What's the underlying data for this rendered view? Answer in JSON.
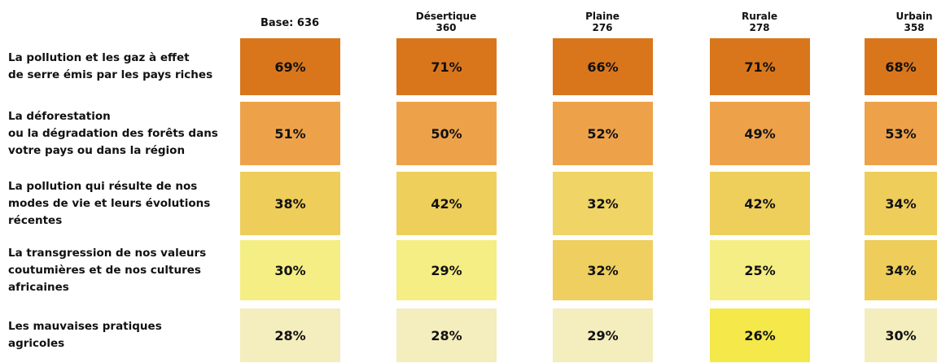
{
  "table": {
    "columns": [
      {
        "name": "Base: 636"
      },
      {
        "name": "Désertique",
        "n": "360"
      },
      {
        "name": "Plaine",
        "n": "276"
      },
      {
        "name": "Rurale",
        "n": "278"
      },
      {
        "name": "Urbain",
        "n": "358"
      }
    ],
    "rows": [
      {
        "label": [
          "La pollution et les gaz à effet",
          "de serre émis par les pays riches"
        ],
        "cells": [
          "69%",
          "71%",
          "66%",
          "71%",
          "68%"
        ],
        "colors": [
          "#d9761b",
          "#d9761b",
          "#d9761b",
          "#d9761b",
          "#d9761b"
        ]
      },
      {
        "label": [
          "La déforestation",
          "ou la dégradation des forêts dans",
          "votre pays ou dans la région"
        ],
        "cells": [
          "51%",
          "50%",
          "52%",
          "49%",
          "53%"
        ],
        "colors": [
          "#eda24a",
          "#eda24a",
          "#eda24a",
          "#eda24a",
          "#eda24a"
        ]
      },
      {
        "label": [
          "La pollution qui résulte de nos",
          "modes de vie et leurs évolutions",
          "récentes"
        ],
        "cells": [
          "38%",
          "42%",
          "32%",
          "42%",
          "34%"
        ],
        "colors": [
          "#eecd5a",
          "#efcf5c",
          "#f0d465",
          "#efcf5c",
          "#eecd5a"
        ]
      },
      {
        "label": [
          "La transgression de nos valeurs",
          "coutumières et de nos cultures",
          "africaines"
        ],
        "cells": [
          "30%",
          "29%",
          "32%",
          "25%",
          "34%"
        ],
        "colors": [
          "#f4ee84",
          "#f4ee84",
          "#eecf5f",
          "#f4ee84",
          "#eecd5a"
        ]
      },
      {
        "label": [
          "Les mauvaises pratiques",
          "agricoles"
        ],
        "cells": [
          "28%",
          "28%",
          "29%",
          "26%",
          "30%"
        ],
        "colors": [
          "#f4edbd",
          "#f4edbd",
          "#f4edbd",
          "#f4e84a",
          "#f4edbd"
        ]
      }
    ]
  }
}
